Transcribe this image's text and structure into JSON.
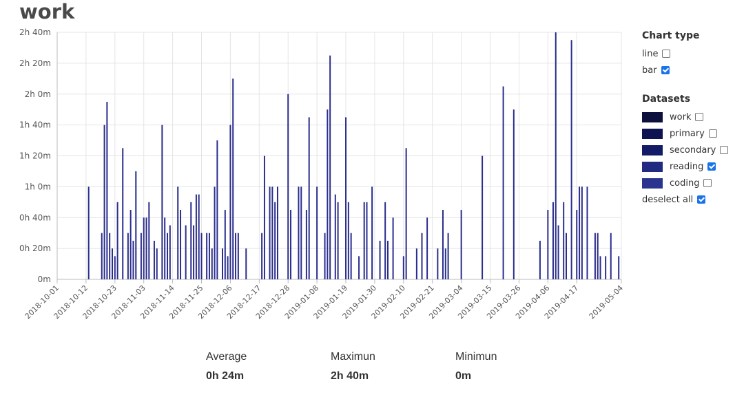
{
  "page": {
    "title": "work"
  },
  "chart_data": {
    "type": "bar",
    "ylabel": "",
    "xlabel": "",
    "ylim_minutes": [
      0,
      160
    ],
    "ytick_minutes": [
      0,
      20,
      40,
      60,
      80,
      100,
      120,
      140,
      160
    ],
    "ytick_labels": [
      "0m",
      "0h 20m",
      "0h 40m",
      "1h 0m",
      "1h 20m",
      "1h 40m",
      "2h 0m",
      "2h 20m",
      "2h 40m"
    ],
    "x_start": "2018-10-01",
    "x_end": "2019-05-04",
    "x_tick_labels": [
      "2018-10-01",
      "2018-10-12",
      "2018-10-23",
      "2018-11-03",
      "2018-11-14",
      "2018-11-25",
      "2018-12-06",
      "2018-12-17",
      "2018-12-28",
      "2019-01-08",
      "2019-01-19",
      "2019-01-30",
      "2019-02-10",
      "2019-02-21",
      "2019-03-04",
      "2019-03-15",
      "2019-03-26",
      "2019-04-06",
      "2019-04-17",
      "2019-05-04"
    ],
    "bar_color": "#2a2d8c",
    "series": [
      {
        "points": [
          [
            "2018-10-13",
            60
          ],
          [
            "2018-10-18",
            30
          ],
          [
            "2018-10-19",
            100
          ],
          [
            "2018-10-20",
            115
          ],
          [
            "2018-10-21",
            30
          ],
          [
            "2018-10-22",
            20
          ],
          [
            "2018-10-23",
            15
          ],
          [
            "2018-10-24",
            50
          ],
          [
            "2018-10-26",
            85
          ],
          [
            "2018-10-28",
            30
          ],
          [
            "2018-10-29",
            45
          ],
          [
            "2018-10-30",
            25
          ],
          [
            "2018-10-31",
            70
          ],
          [
            "2018-11-02",
            30
          ],
          [
            "2018-11-03",
            40
          ],
          [
            "2018-11-04",
            40
          ],
          [
            "2018-11-05",
            50
          ],
          [
            "2018-11-07",
            25
          ],
          [
            "2018-11-08",
            20
          ],
          [
            "2018-11-10",
            100
          ],
          [
            "2018-11-11",
            40
          ],
          [
            "2018-11-12",
            30
          ],
          [
            "2018-11-13",
            35
          ],
          [
            "2018-11-16",
            60
          ],
          [
            "2018-11-17",
            45
          ],
          [
            "2018-11-19",
            35
          ],
          [
            "2018-11-21",
            50
          ],
          [
            "2018-11-22",
            35
          ],
          [
            "2018-11-23",
            55
          ],
          [
            "2018-11-24",
            55
          ],
          [
            "2018-11-25",
            30
          ],
          [
            "2018-11-27",
            30
          ],
          [
            "2018-11-28",
            30
          ],
          [
            "2018-11-29",
            20
          ],
          [
            "2018-11-30",
            60
          ],
          [
            "2018-12-01",
            90
          ],
          [
            "2018-12-03",
            20
          ],
          [
            "2018-12-04",
            45
          ],
          [
            "2018-12-05",
            15
          ],
          [
            "2018-12-06",
            100
          ],
          [
            "2018-12-07",
            130
          ],
          [
            "2018-12-08",
            30
          ],
          [
            "2018-12-09",
            30
          ],
          [
            "2018-12-12",
            20
          ],
          [
            "2018-12-18",
            30
          ],
          [
            "2018-12-19",
            80
          ],
          [
            "2018-12-21",
            60
          ],
          [
            "2018-12-22",
            60
          ],
          [
            "2018-12-23",
            50
          ],
          [
            "2018-12-24",
            60
          ],
          [
            "2018-12-28",
            120
          ],
          [
            "2018-12-29",
            45
          ],
          [
            "2019-01-01",
            60
          ],
          [
            "2019-01-02",
            60
          ],
          [
            "2019-01-04",
            45
          ],
          [
            "2019-01-05",
            105
          ],
          [
            "2019-01-08",
            60
          ],
          [
            "2019-01-11",
            30
          ],
          [
            "2019-01-12",
            110
          ],
          [
            "2019-01-13",
            145
          ],
          [
            "2019-01-15",
            55
          ],
          [
            "2019-01-16",
            50
          ],
          [
            "2019-01-19",
            105
          ],
          [
            "2019-01-20",
            50
          ],
          [
            "2019-01-21",
            30
          ],
          [
            "2019-01-24",
            15
          ],
          [
            "2019-01-26",
            50
          ],
          [
            "2019-01-27",
            50
          ],
          [
            "2019-01-29",
            60
          ],
          [
            "2019-02-01",
            25
          ],
          [
            "2019-02-03",
            50
          ],
          [
            "2019-02-04",
            25
          ],
          [
            "2019-02-06",
            40
          ],
          [
            "2019-02-10",
            15
          ],
          [
            "2019-02-11",
            85
          ],
          [
            "2019-02-15",
            20
          ],
          [
            "2019-02-17",
            30
          ],
          [
            "2019-02-19",
            40
          ],
          [
            "2019-02-23",
            20
          ],
          [
            "2019-02-25",
            45
          ],
          [
            "2019-02-26",
            20
          ],
          [
            "2019-02-27",
            30
          ],
          [
            "2019-03-04",
            45
          ],
          [
            "2019-03-12",
            80
          ],
          [
            "2019-03-20",
            125
          ],
          [
            "2019-03-24",
            110
          ],
          [
            "2019-04-03",
            25
          ],
          [
            "2019-04-06",
            45
          ],
          [
            "2019-04-08",
            50
          ],
          [
            "2019-04-09",
            160
          ],
          [
            "2019-04-10",
            35
          ],
          [
            "2019-04-12",
            50
          ],
          [
            "2019-04-13",
            30
          ],
          [
            "2019-04-15",
            155
          ],
          [
            "2019-04-17",
            45
          ],
          [
            "2019-04-18",
            60
          ],
          [
            "2019-04-19",
            60
          ],
          [
            "2019-04-21",
            60
          ],
          [
            "2019-04-24",
            30
          ],
          [
            "2019-04-25",
            30
          ],
          [
            "2019-04-26",
            15
          ],
          [
            "2019-04-28",
            15
          ],
          [
            "2019-04-30",
            30
          ],
          [
            "2019-05-03",
            15
          ],
          [
            "2019-05-07",
            30
          ]
        ]
      }
    ]
  },
  "chart_type": {
    "heading": "Chart type",
    "options": [
      {
        "label": "line",
        "checked": false
      },
      {
        "label": "bar",
        "checked": true
      }
    ]
  },
  "datasets": {
    "heading": "Datasets",
    "items": [
      {
        "label": "work",
        "color": "#0d0f3d",
        "checked": false
      },
      {
        "label": "primary",
        "color": "#0f1450",
        "checked": false
      },
      {
        "label": "secondary",
        "color": "#141b66",
        "checked": false
      },
      {
        "label": "reading",
        "color": "#1f2a80",
        "checked": true
      },
      {
        "label": "coding",
        "color": "#2a348f",
        "checked": false
      }
    ],
    "deselect_label": "deselect all",
    "deselect_checked": true
  },
  "stats": [
    {
      "label": "Average",
      "value": "0h 24m"
    },
    {
      "label": "Maximun",
      "value": "2h 40m"
    },
    {
      "label": "Minimun",
      "value": "0m"
    }
  ]
}
